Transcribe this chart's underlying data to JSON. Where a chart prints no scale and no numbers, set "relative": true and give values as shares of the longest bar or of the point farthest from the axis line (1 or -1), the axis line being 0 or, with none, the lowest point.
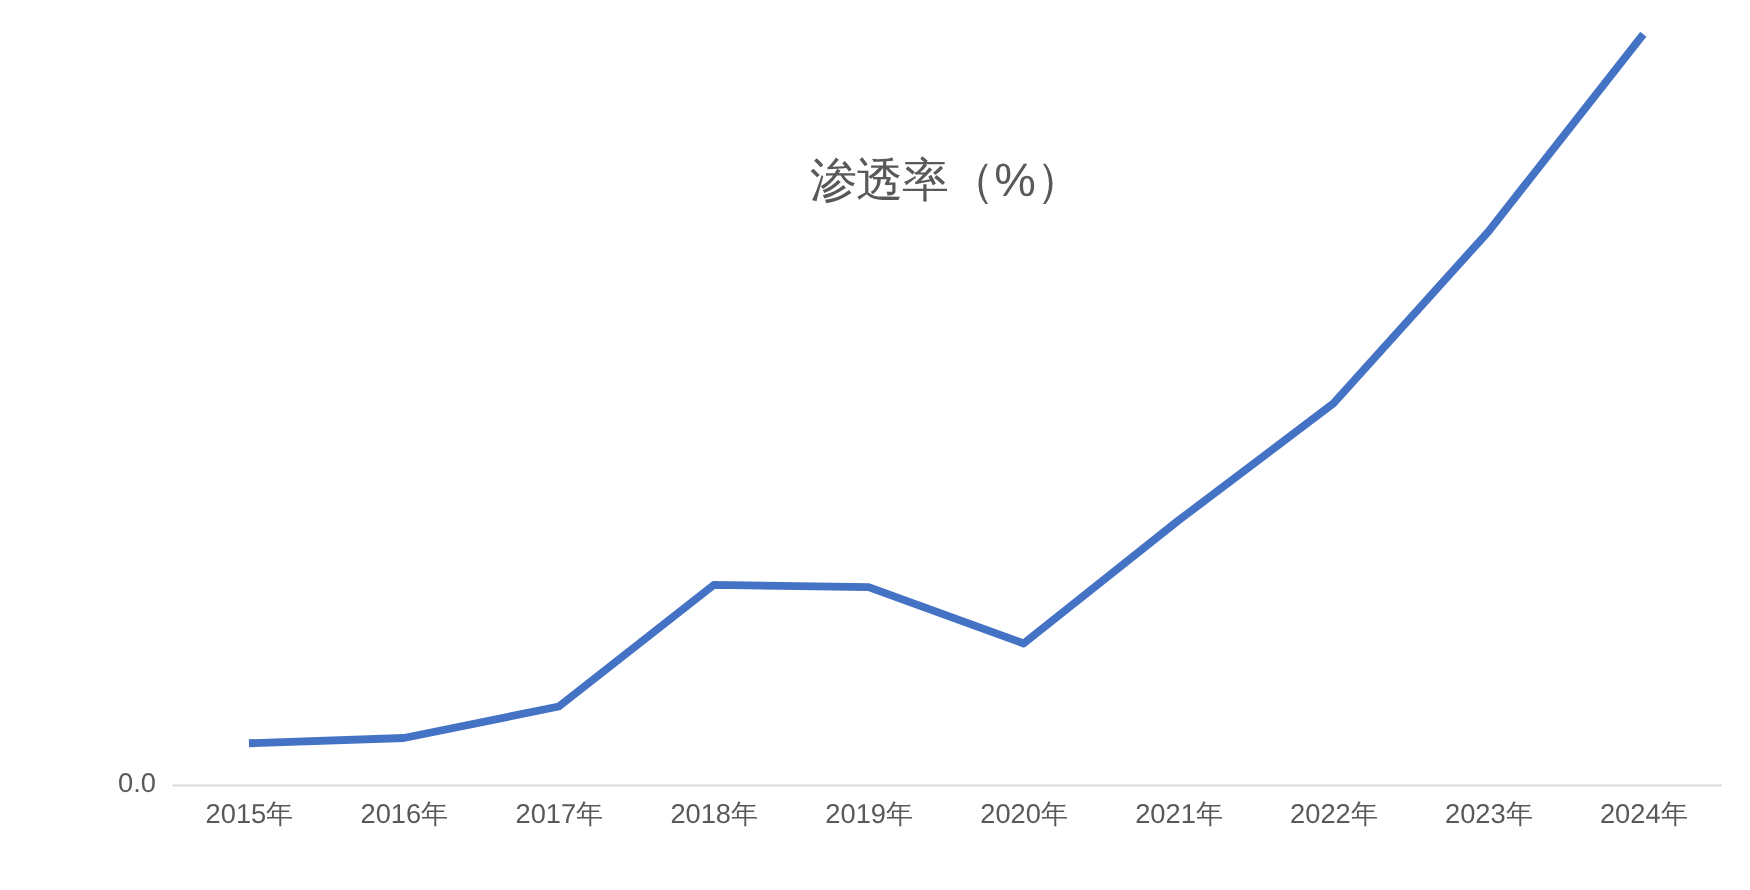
{
  "chart_data": {
    "type": "line",
    "title": "渗透率（%）",
    "relative": true,
    "categories": [
      "2015年",
      "2016年",
      "2017年",
      "2018年",
      "2019年",
      "2020年",
      "2021年",
      "2022年",
      "2023年",
      "2024年"
    ],
    "series": [
      {
        "color": "#4472c4",
        "values": [
          0.055,
          0.062,
          0.104,
          0.266,
          0.263,
          0.188,
          0.352,
          0.508,
          0.737,
          1
        ]
      }
    ],
    "annotations": [
      {
        "text": "0.0"
      }
    ],
    "grid": false,
    "marker": "none",
    "line_style": "solid"
  }
}
